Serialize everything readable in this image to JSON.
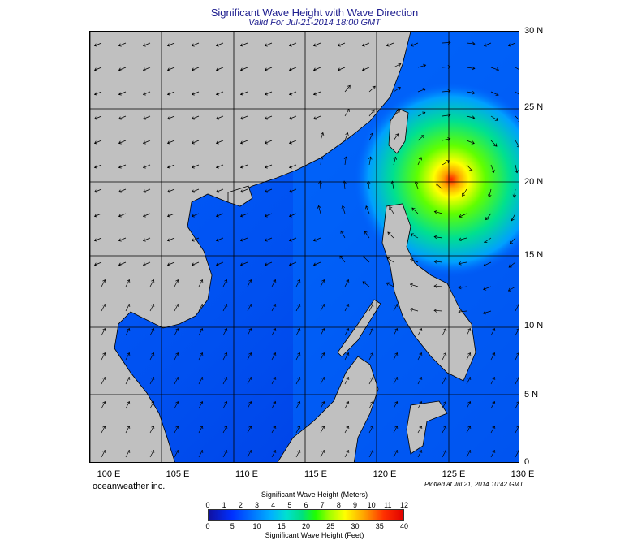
{
  "header": {
    "title": "Significant Wave Height with Wave Direction",
    "subtitle": "Valid For Jul-21-2014 18:00 GMT"
  },
  "axes": {
    "lat_labels": [
      "30 N",
      "25 N",
      "20 N",
      "15 N",
      "10 N",
      "5 N",
      "0"
    ],
    "lon_labels": [
      "100 E",
      "105 E",
      "110 E",
      "115 E",
      "120 E",
      "125 E",
      "130 E"
    ]
  },
  "footer": {
    "company": "oceanweather inc.",
    "plotted": "Plotted at Jul 21, 2014 10:42 GMT"
  },
  "colorbar": {
    "title_meters": "Significant Wave Height (Meters)",
    "title_feet": "Significant Wave Height (Feet)",
    "meter_ticks": [
      "0",
      "1",
      "2",
      "3",
      "4",
      "5",
      "6",
      "7",
      "8",
      "9",
      "10",
      "11",
      "12"
    ],
    "feet_ticks": [
      "0",
      "5",
      "10",
      "15",
      "20",
      "25",
      "30",
      "35",
      "40"
    ]
  },
  "colors": {
    "land": "#c0c0c0",
    "ocean_low": "#0030e0",
    "ocean_mid": "#0080ff",
    "peak": "#ff3000",
    "title": "#202090"
  },
  "storm_peak": {
    "lon": 125,
    "lat": 20.3
  }
}
